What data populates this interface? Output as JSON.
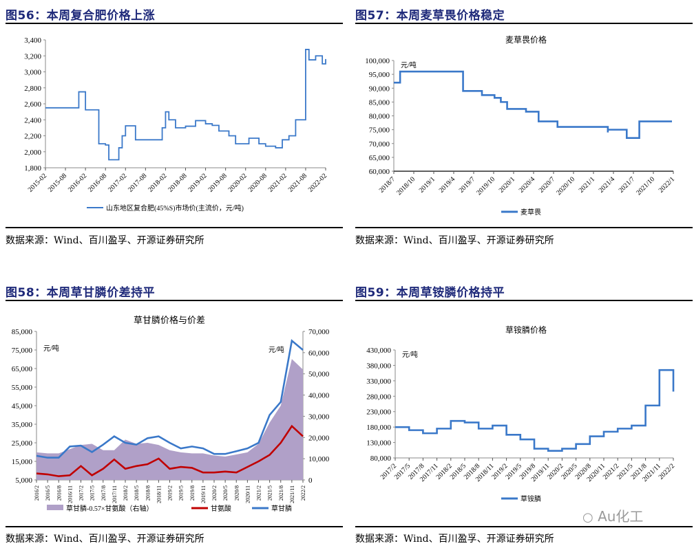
{
  "panels": {
    "fig56": {
      "title": "图56：本周复合肥价格上涨",
      "source": "数据来源：Wind、百川盈孚、开源证券研究所",
      "legend": "山东地区复合肥(45%S)市场价(主流价，元/吨)"
    },
    "fig57": {
      "title": "图57：本周麦草畏价格稳定",
      "source": "数据来源：Wind、百川盈孚、开源证券研究所",
      "chart_title": "麦草畏价格",
      "unit": "元/吨",
      "legend": "麦草畏"
    },
    "fig58": {
      "title": "图58：本周草甘膦价差持平",
      "source": "数据来源：Wind、百川盈孚、开源证券研究所",
      "chart_title": "草甘膦价格与价差",
      "unit_left": "元/吨",
      "unit_right": "元/吨",
      "legend": [
        "草甘膦-0.57×甘氨酸（右轴）",
        "甘氨酸",
        "草甘膦"
      ]
    },
    "fig59": {
      "title": "图59：本周草铵膦价格持平",
      "source": "数据来源：Wind、百川盈孚、开源证券研究所",
      "chart_title": "草铵膦价格",
      "unit": "元/吨",
      "legend": "草铵膦"
    }
  },
  "watermark": "Au化工",
  "colors": {
    "title": "#1f2a7a",
    "line_blue": "#3a78c9",
    "line_red": "#c00000",
    "area_purple": "#b0a0c8"
  },
  "chart_data": [
    {
      "type": "line",
      "title": "本周复合肥价格上涨",
      "xlabel": "",
      "ylabel": "元/吨",
      "ylim": [
        1800,
        3400
      ],
      "yticks": [
        1800,
        2000,
        2200,
        2400,
        2600,
        2800,
        3000,
        3200,
        3400
      ],
      "xticks": [
        "2015-02",
        "2015-08",
        "2016-02",
        "2016-08",
        "2017-02",
        "2017-08",
        "2018-02",
        "2018-08",
        "2019-02",
        "2019-08",
        "2020-02",
        "2020-08",
        "2021-02",
        "2021-08",
        "2022-02"
      ],
      "series": [
        {
          "name": "山东地区复合肥(45%S)市场价(主流价，元/吨)",
          "x": [
            "2015-02",
            "2015-11",
            "2015-12",
            "2016-02",
            "2016-05",
            "2016-06",
            "2016-08",
            "2016-09",
            "2016-11",
            "2016-12",
            "2017-01",
            "2017-02",
            "2017-05",
            "2017-10",
            "2018-01",
            "2018-02",
            "2018-03",
            "2018-05",
            "2018-08",
            "2018-11",
            "2019-02",
            "2019-04",
            "2019-06",
            "2019-09",
            "2019-11",
            "2020-02",
            "2020-03",
            "2020-06",
            "2020-08",
            "2020-11",
            "2021-01",
            "2021-03",
            "2021-05",
            "2021-06",
            "2021-08",
            "2021-09",
            "2021-11",
            "2022-01",
            "2022-02"
          ],
          "values": [
            2550,
            2550,
            2750,
            2525,
            2525,
            2100,
            2085,
            1900,
            1900,
            2050,
            2200,
            2325,
            2150,
            2150,
            2300,
            2500,
            2400,
            2300,
            2320,
            2390,
            2350,
            2330,
            2260,
            2200,
            2100,
            2100,
            2170,
            2100,
            2070,
            2050,
            2150,
            2200,
            2400,
            2400,
            3280,
            3150,
            3200,
            3100,
            3160
          ]
        }
      ]
    },
    {
      "type": "line",
      "title": "麦草畏价格",
      "xlabel": "",
      "ylabel": "元/吨",
      "ylim": [
        60000,
        100000
      ],
      "yticks": [
        60000,
        65000,
        70000,
        75000,
        80000,
        85000,
        90000,
        95000,
        100000
      ],
      "xticks": [
        "2018/7",
        "2018/10",
        "2019/1",
        "2019/4",
        "2019/7",
        "2019/10",
        "2020/1",
        "2020/4",
        "2020/7",
        "2020/10",
        "2021/1",
        "2021/4",
        "2021/7",
        "2021/10",
        "2022/1"
      ],
      "series": [
        {
          "name": "麦草畏",
          "x": [
            "2018/7",
            "2018/8",
            "2019/6",
            "2019/9",
            "2019/11",
            "2019/12",
            "2020/1",
            "2020/4",
            "2020/6",
            "2020/9",
            "2021/5",
            "2021/5",
            "2021/8",
            "2021/10",
            "2022/2"
          ],
          "values": [
            92000,
            96000,
            89000,
            87500,
            86500,
            85000,
            82500,
            81500,
            78000,
            76000,
            74000,
            75000,
            72000,
            78000,
            78000
          ]
        }
      ]
    },
    {
      "type": "line",
      "title": "草甘膦价格与价差",
      "xlabel": "",
      "ylabel": "元/吨",
      "ylim": [
        5000,
        85000
      ],
      "ylim_right": [
        0,
        70000
      ],
      "yticks": [
        5000,
        15000,
        25000,
        35000,
        45000,
        55000,
        65000,
        75000,
        85000
      ],
      "yticks_right": [
        0,
        10000,
        20000,
        30000,
        40000,
        50000,
        60000,
        70000
      ],
      "xticks": [
        "2016/2",
        "2016/5",
        "2016/8",
        "2016/11",
        "2017/2",
        "2017/5",
        "2017/8",
        "2017/11",
        "2018/2",
        "2018/5",
        "2018/8",
        "2018/11",
        "2019/2",
        "2019/5",
        "2019/8",
        "2019/11",
        "2020/2",
        "2020/5",
        "2020/8",
        "2020/11",
        "2021/2",
        "2021/5",
        "2021/8",
        "2021/11",
        "2022/2"
      ],
      "legend_position": "bottom",
      "series": [
        {
          "name": "草甘膦-0.57×甘氨酸（右轴）",
          "type": "area",
          "axis": "right",
          "values": [
            13000,
            12500,
            12500,
            14500,
            16500,
            17000,
            14000,
            14000,
            19000,
            17000,
            17500,
            16500,
            14000,
            13000,
            12500,
            12500,
            11500,
            11000,
            12000,
            13000,
            17000,
            27000,
            35000,
            57000,
            52000
          ]
        },
        {
          "name": "甘氨酸",
          "axis": "left",
          "values": [
            8500,
            8000,
            7000,
            7500,
            12500,
            7500,
            11000,
            16000,
            11000,
            12500,
            13500,
            16500,
            11000,
            12000,
            11500,
            9000,
            9000,
            9500,
            9000,
            12000,
            15000,
            18500,
            25000,
            34000,
            28500
          ]
        },
        {
          "name": "草甘膦",
          "axis": "left",
          "values": [
            18000,
            17000,
            17000,
            23000,
            23500,
            20000,
            24000,
            28500,
            25000,
            24000,
            27500,
            28500,
            25000,
            22000,
            23000,
            22000,
            19000,
            19000,
            20500,
            22000,
            25000,
            40000,
            47000,
            80000,
            75000
          ]
        }
      ]
    },
    {
      "type": "line",
      "title": "草铵膦价格",
      "xlabel": "",
      "ylabel": "元/吨",
      "ylim": [
        80000,
        430000
      ],
      "yticks": [
        80000,
        130000,
        180000,
        230000,
        280000,
        330000,
        380000,
        430000
      ],
      "xticks": [
        "2017/2",
        "2017/5",
        "2017/8",
        "2017/11",
        "2018/2",
        "2018/5",
        "2018/8",
        "2018/11",
        "2019/2",
        "2019/5",
        "2019/8",
        "2019/11",
        "2020/2",
        "2020/5",
        "2020/8",
        "2020/11",
        "2021/2",
        "2021/5",
        "2021/8",
        "2021/11",
        "2022/2"
      ],
      "series": [
        {
          "name": "草铵膦",
          "values": [
            180000,
            170000,
            160000,
            175000,
            200000,
            195000,
            175000,
            185000,
            155000,
            140000,
            110000,
            103000,
            110000,
            125000,
            150000,
            165000,
            175000,
            185000,
            250000,
            365000,
            295000
          ]
        }
      ]
    }
  ]
}
